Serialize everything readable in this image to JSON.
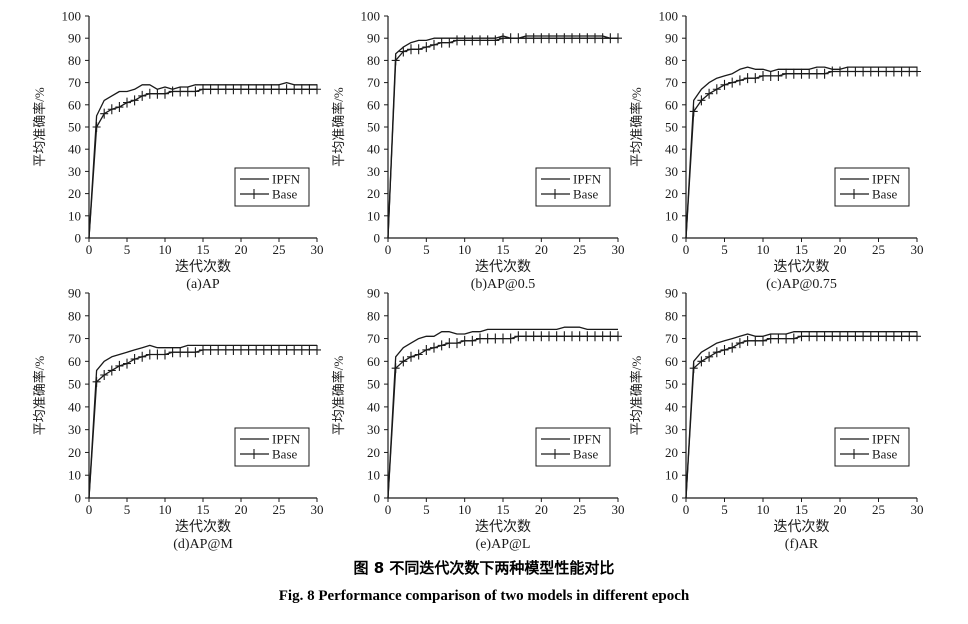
{
  "figure": {
    "caption_cn": "图 8 不同迭代次数下两种模型性能对比",
    "caption_en": "Fig. 8 Performance comparison of two models in different epoch"
  },
  "style": {
    "line_color": "#1a1a1a",
    "background": "#ffffff"
  },
  "chart_data": [
    {
      "type": "line",
      "subtitle": "(a)AP",
      "xlabel": "迭代次数",
      "ylabel": "平均准确率/%",
      "xlim": [
        0,
        30
      ],
      "ylim": [
        0,
        100
      ],
      "xticks": [
        0,
        5,
        10,
        15,
        20,
        25,
        30
      ],
      "yticks": [
        0,
        10,
        20,
        30,
        40,
        50,
        60,
        70,
        80,
        90,
        100
      ],
      "legend_position": "bottom-right",
      "x": [
        0,
        1,
        2,
        3,
        4,
        5,
        6,
        7,
        8,
        9,
        10,
        11,
        12,
        13,
        14,
        15,
        16,
        17,
        18,
        19,
        20,
        21,
        22,
        23,
        24,
        25,
        26,
        27,
        28,
        29,
        30
      ],
      "series": [
        {
          "name": "IPFN",
          "marker": "none",
          "values": [
            0,
            55,
            62,
            64,
            66,
            66,
            67,
            69,
            69,
            67,
            68,
            67,
            68,
            68,
            69,
            69,
            69,
            69,
            69,
            69,
            69,
            69,
            69,
            69,
            69,
            69,
            70,
            69,
            69,
            69,
            69
          ]
        },
        {
          "name": "Base",
          "marker": "plus",
          "values": [
            0,
            50,
            56,
            58,
            59,
            61,
            62,
            64,
            65,
            65,
            65,
            66,
            66,
            66,
            66,
            67,
            67,
            67,
            67,
            67,
            67,
            67,
            67,
            67,
            67,
            67,
            67,
            67,
            67,
            67,
            67
          ]
        }
      ]
    },
    {
      "type": "line",
      "subtitle": "(b)AP@0.5",
      "xlabel": "迭代次数",
      "ylabel": "平均准确率/%",
      "xlim": [
        0,
        30
      ],
      "ylim": [
        0,
        100
      ],
      "xticks": [
        0,
        5,
        10,
        15,
        20,
        25,
        30
      ],
      "yticks": [
        0,
        10,
        20,
        30,
        40,
        50,
        60,
        70,
        80,
        90,
        100
      ],
      "legend_position": "bottom-right",
      "x": [
        0,
        1,
        2,
        3,
        4,
        5,
        6,
        7,
        8,
        9,
        10,
        11,
        12,
        13,
        14,
        15,
        16,
        17,
        18,
        19,
        20,
        21,
        22,
        23,
        24,
        25,
        26,
        27,
        28,
        29,
        30
      ],
      "series": [
        {
          "name": "IPFN",
          "marker": "none",
          "values": [
            0,
            83,
            86,
            88,
            89,
            89,
            90,
            90,
            90,
            90,
            90,
            90,
            90,
            90,
            90,
            91,
            90,
            90,
            91,
            91,
            91,
            91,
            91,
            91,
            91,
            91,
            91,
            91,
            91,
            90,
            90
          ]
        },
        {
          "name": "Base",
          "marker": "plus",
          "values": [
            0,
            80,
            84,
            85,
            85,
            86,
            87,
            88,
            88,
            89,
            89,
            89,
            89,
            89,
            89,
            90,
            90,
            90,
            90,
            90,
            90,
            90,
            90,
            90,
            90,
            90,
            90,
            90,
            90,
            90,
            90
          ]
        }
      ]
    },
    {
      "type": "line",
      "subtitle": "(c)AP@0.75",
      "xlabel": "迭代次数",
      "ylabel": "平均准确率/%",
      "xlim": [
        0,
        30
      ],
      "ylim": [
        0,
        100
      ],
      "xticks": [
        0,
        5,
        10,
        15,
        20,
        25,
        30
      ],
      "yticks": [
        0,
        10,
        20,
        30,
        40,
        50,
        60,
        70,
        80,
        90,
        100
      ],
      "legend_position": "bottom-right",
      "x": [
        0,
        1,
        2,
        3,
        4,
        5,
        6,
        7,
        8,
        9,
        10,
        11,
        12,
        13,
        14,
        15,
        16,
        17,
        18,
        19,
        20,
        21,
        22,
        23,
        24,
        25,
        26,
        27,
        28,
        29,
        30
      ],
      "series": [
        {
          "name": "IPFN",
          "marker": "none",
          "values": [
            0,
            62,
            67,
            70,
            72,
            73,
            74,
            76,
            77,
            76,
            76,
            75,
            76,
            76,
            76,
            76,
            76,
            77,
            77,
            76,
            76,
            77,
            77,
            77,
            77,
            77,
            77,
            77,
            77,
            77,
            77
          ]
        },
        {
          "name": "Base",
          "marker": "plus",
          "values": [
            0,
            57,
            62,
            65,
            67,
            69,
            70,
            71,
            72,
            72,
            73,
            73,
            73,
            74,
            74,
            74,
            74,
            74,
            74,
            75,
            75,
            75,
            75,
            75,
            75,
            75,
            75,
            75,
            75,
            75,
            75
          ]
        }
      ]
    },
    {
      "type": "line",
      "subtitle": "(d)AP@M",
      "xlabel": "迭代次数",
      "ylabel": "平均准确率/%",
      "xlim": [
        0,
        30
      ],
      "ylim": [
        0,
        90
      ],
      "xticks": [
        0,
        5,
        10,
        15,
        20,
        25,
        30
      ],
      "yticks": [
        0,
        10,
        20,
        30,
        40,
        50,
        60,
        70,
        80,
        90
      ],
      "legend_position": "bottom-right",
      "x": [
        0,
        1,
        2,
        3,
        4,
        5,
        6,
        7,
        8,
        9,
        10,
        11,
        12,
        13,
        14,
        15,
        16,
        17,
        18,
        19,
        20,
        21,
        22,
        23,
        24,
        25,
        26,
        27,
        28,
        29,
        30
      ],
      "series": [
        {
          "name": "IPFN",
          "marker": "none",
          "values": [
            0,
            56,
            60,
            62,
            63,
            64,
            65,
            66,
            67,
            66,
            66,
            66,
            66,
            67,
            67,
            67,
            67,
            67,
            67,
            67,
            67,
            67,
            67,
            67,
            67,
            67,
            67,
            67,
            67,
            67,
            67
          ]
        },
        {
          "name": "Base",
          "marker": "plus",
          "values": [
            0,
            51,
            54,
            56,
            58,
            59,
            61,
            62,
            63,
            63,
            63,
            64,
            64,
            64,
            64,
            65,
            65,
            65,
            65,
            65,
            65,
            65,
            65,
            65,
            65,
            65,
            65,
            65,
            65,
            65,
            65
          ]
        }
      ]
    },
    {
      "type": "line",
      "subtitle": "(e)AP@L",
      "xlabel": "迭代次数",
      "ylabel": "平均准确率/%",
      "xlim": [
        0,
        30
      ],
      "ylim": [
        0,
        90
      ],
      "xticks": [
        0,
        5,
        10,
        15,
        20,
        25,
        30
      ],
      "yticks": [
        0,
        10,
        20,
        30,
        40,
        50,
        60,
        70,
        80,
        90
      ],
      "legend_position": "bottom-right",
      "x": [
        0,
        1,
        2,
        3,
        4,
        5,
        6,
        7,
        8,
        9,
        10,
        11,
        12,
        13,
        14,
        15,
        16,
        17,
        18,
        19,
        20,
        21,
        22,
        23,
        24,
        25,
        26,
        27,
        28,
        29,
        30
      ],
      "series": [
        {
          "name": "IPFN",
          "marker": "none",
          "values": [
            0,
            62,
            66,
            68,
            70,
            71,
            71,
            73,
            73,
            72,
            72,
            73,
            73,
            74,
            74,
            74,
            74,
            74,
            74,
            74,
            74,
            74,
            74,
            75,
            75,
            75,
            74,
            74,
            74,
            74,
            74
          ]
        },
        {
          "name": "Base",
          "marker": "plus",
          "values": [
            0,
            57,
            60,
            62,
            63,
            65,
            66,
            67,
            68,
            68,
            69,
            69,
            70,
            70,
            70,
            70,
            70,
            71,
            71,
            71,
            71,
            71,
            71,
            71,
            71,
            71,
            71,
            71,
            71,
            71,
            71
          ]
        }
      ]
    },
    {
      "type": "line",
      "subtitle": "(f)AR",
      "xlabel": "迭代次数",
      "ylabel": "平均准确率/%",
      "xlim": [
        0,
        30
      ],
      "ylim": [
        0,
        90
      ],
      "xticks": [
        0,
        5,
        10,
        15,
        20,
        25,
        30
      ],
      "yticks": [
        0,
        10,
        20,
        30,
        40,
        50,
        60,
        70,
        80,
        90
      ],
      "legend_position": "bottom-right",
      "x": [
        0,
        1,
        2,
        3,
        4,
        5,
        6,
        7,
        8,
        9,
        10,
        11,
        12,
        13,
        14,
        15,
        16,
        17,
        18,
        19,
        20,
        21,
        22,
        23,
        24,
        25,
        26,
        27,
        28,
        29,
        30
      ],
      "series": [
        {
          "name": "IPFN",
          "marker": "none",
          "values": [
            0,
            60,
            64,
            66,
            68,
            69,
            70,
            71,
            72,
            71,
            71,
            72,
            72,
            72,
            73,
            73,
            73,
            73,
            73,
            73,
            73,
            73,
            73,
            73,
            73,
            73,
            73,
            73,
            73,
            73,
            73
          ]
        },
        {
          "name": "Base",
          "marker": "plus",
          "values": [
            0,
            57,
            60,
            62,
            64,
            65,
            66,
            68,
            69,
            69,
            69,
            70,
            70,
            70,
            70,
            71,
            71,
            71,
            71,
            71,
            71,
            71,
            71,
            71,
            71,
            71,
            71,
            71,
            71,
            71,
            71
          ]
        }
      ]
    }
  ]
}
